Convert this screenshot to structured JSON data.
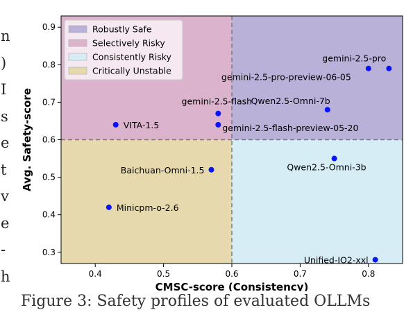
{
  "left_margin_text": [
    "n",
    ")",
    "I",
    "s",
    "e",
    "t",
    "v",
    "e",
    "-",
    "h"
  ],
  "caption": "Figure 3: Safety profiles of evaluated OLLMs",
  "chart_data": {
    "type": "scatter",
    "xlabel": "CMSC-score (Consistency)",
    "ylabel": "Avg. Safety-score",
    "xlim": [
      0.35,
      0.85
    ],
    "ylim": [
      0.27,
      0.93
    ],
    "xticks": [
      "0.4",
      "0.5",
      "0.6",
      "0.7",
      "0.8"
    ],
    "yticks": [
      "0.3",
      "0.4",
      "0.5",
      "0.6",
      "0.7",
      "0.8",
      "0.9"
    ],
    "threshold_x": 0.6,
    "threshold_y": 0.6,
    "legend_position": "top-left",
    "quadrants": [
      {
        "name": "Robustly Safe",
        "color": "#b9b1d8"
      },
      {
        "name": "Selectively Risky",
        "color": "#dcb3cc"
      },
      {
        "name": "Consistently Risky",
        "color": "#d7edf6"
      },
      {
        "name": "Critically Unstable",
        "color": "#e6d9ae"
      }
    ],
    "point_color": "#0a14ff",
    "points": [
      {
        "label": "gemini-2.5-pro",
        "x": 0.83,
        "y": 0.79
      },
      {
        "label": "gemini-2.5-pro-preview-06-05",
        "x": 0.8,
        "y": 0.79
      },
      {
        "label": "Qwen2.5-Omni-7b",
        "x": 0.74,
        "y": 0.68
      },
      {
        "label": "gemini-2.5-flash",
        "x": 0.58,
        "y": 0.67
      },
      {
        "label": "gemini-2.5-flash-preview-05-20",
        "x": 0.58,
        "y": 0.64
      },
      {
        "label": "VITA-1.5",
        "x": 0.43,
        "y": 0.64
      },
      {
        "label": "Qwen2.5-Omni-3b",
        "x": 0.75,
        "y": 0.55
      },
      {
        "label": "Baichuan-Omni-1.5",
        "x": 0.57,
        "y": 0.52
      },
      {
        "label": "Minicpm-o-2.6",
        "x": 0.42,
        "y": 0.42
      },
      {
        "label": "Unified-IO2-xxl",
        "x": 0.81,
        "y": 0.28
      }
    ]
  }
}
